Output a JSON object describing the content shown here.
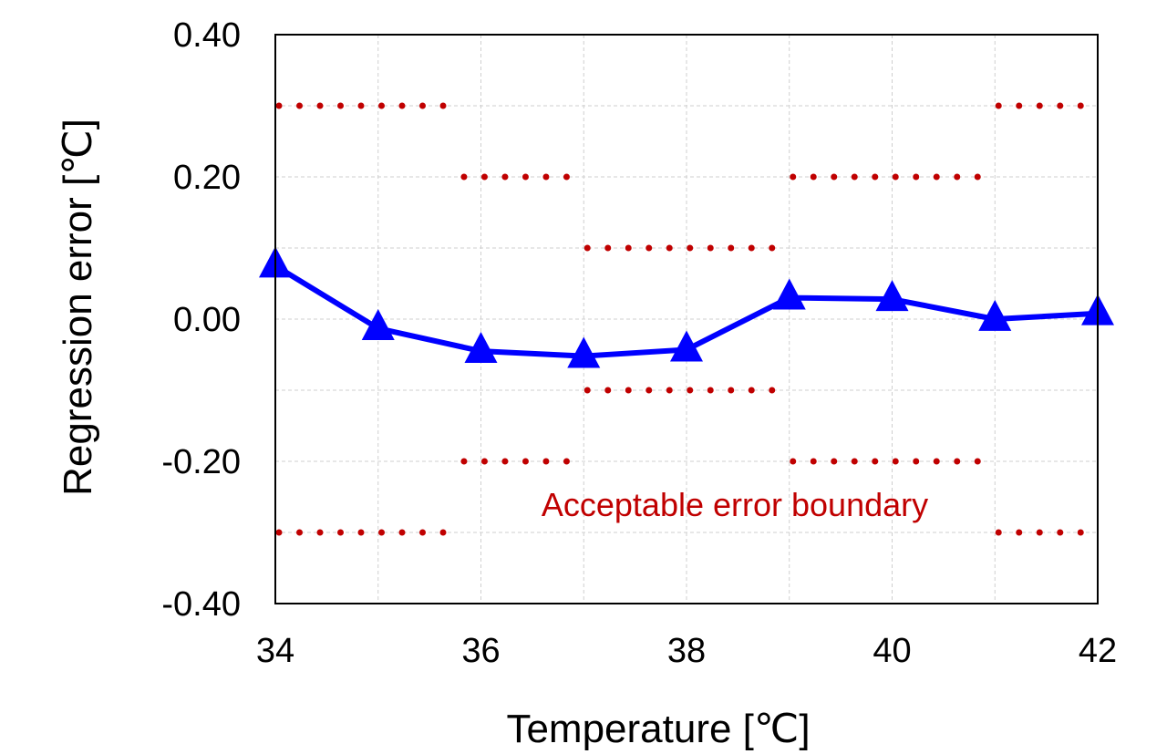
{
  "chart_data": {
    "type": "line",
    "title": "",
    "xlabel": "Temperature [℃]",
    "ylabel": "Regression error [℃]",
    "xlim": [
      34,
      42
    ],
    "ylim": [
      -0.4,
      0.4
    ],
    "x_ticks": [
      "34",
      "36",
      "38",
      "40",
      "42"
    ],
    "x_tick_values": [
      34,
      36,
      38,
      40,
      42
    ],
    "y_ticks": [
      "0.40",
      "0.20",
      "0.00",
      "-0.20",
      "-0.40"
    ],
    "y_tick_values": [
      0.4,
      0.2,
      0.0,
      -0.2,
      -0.4
    ],
    "grid": true,
    "series": [
      {
        "x": [
          34,
          35,
          36,
          37,
          38,
          39,
          40,
          41,
          42
        ],
        "values": [
          0.075,
          -0.013,
          -0.045,
          -0.052,
          -0.043,
          0.03,
          0.028,
          0.0,
          0.008
        ],
        "color": "#0000ff",
        "marker": "triangle"
      }
    ],
    "boundary": {
      "color": "#c00000",
      "segments": [
        {
          "x_start": 34,
          "x_end": 35.8,
          "value": 0.3
        },
        {
          "x_start": 34,
          "x_end": 35.8,
          "value": -0.3
        },
        {
          "x_start": 35.8,
          "x_end": 37,
          "value": 0.2
        },
        {
          "x_start": 35.8,
          "x_end": 37,
          "value": -0.2
        },
        {
          "x_start": 37,
          "x_end": 39,
          "value": 0.1
        },
        {
          "x_start": 37,
          "x_end": 39,
          "value": -0.1
        },
        {
          "x_start": 39,
          "x_end": 41,
          "value": 0.2
        },
        {
          "x_start": 39,
          "x_end": 41,
          "value": -0.2
        },
        {
          "x_start": 41,
          "x_end": 42,
          "value": 0.3
        },
        {
          "x_start": 41,
          "x_end": 42,
          "value": -0.3
        }
      ]
    },
    "annotation": "Acceptable error boundary"
  }
}
